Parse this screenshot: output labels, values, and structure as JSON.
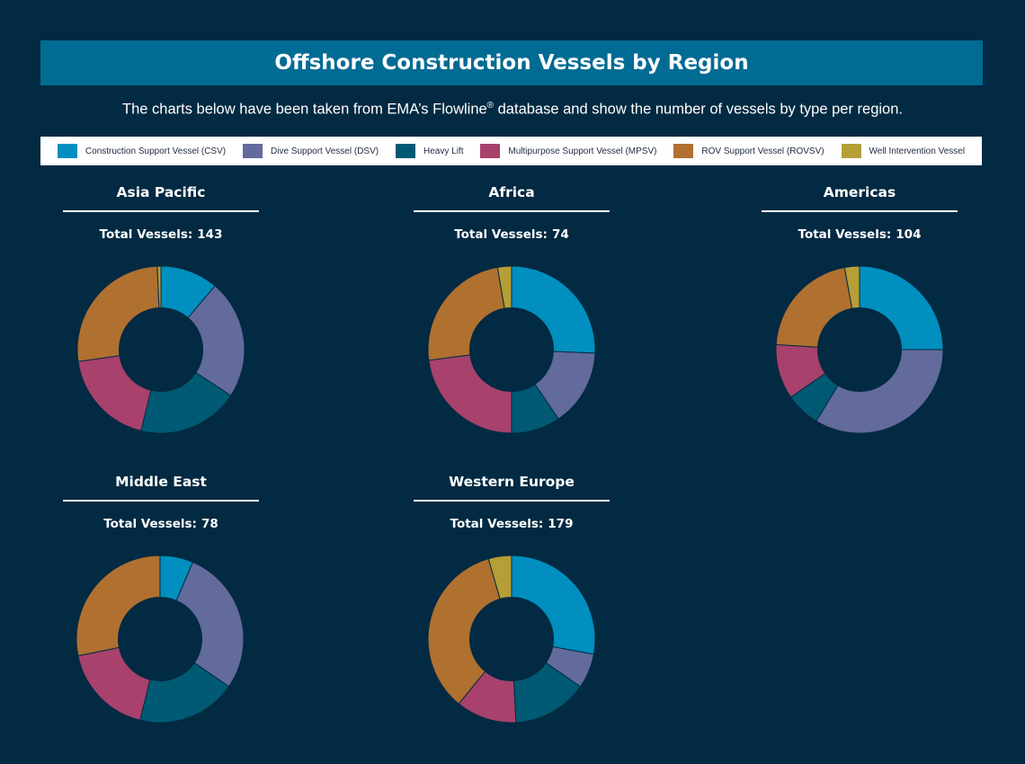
{
  "page": {
    "title": "Offshore Construction Vessels by Region",
    "subtitle_before": "The charts below have been taken from EMA’s Flowline",
    "subtitle_mark": "®",
    "subtitle_after": " database and show the number of vessels by type per region.",
    "total_label": "Total Vessels:"
  },
  "colors": {
    "background": "#022a42",
    "title_bar": "#006b93",
    "slice_border": "#022a42"
  },
  "chart_data": {
    "type": "pie",
    "variant": "donut",
    "legend_placement": "top",
    "categories": [
      {
        "name": "Construction Support Vessel (CSV)",
        "color": "#008fbf"
      },
      {
        "name": "Dive Support Vessel (DSV)",
        "color": "#636a9c"
      },
      {
        "name": "Heavy Lift",
        "color": "#005a73"
      },
      {
        "name": "Multipurpose Support Vessel (MPSV)",
        "color": "#a8416c"
      },
      {
        "name": "ROV Support Vessel (ROVSV)",
        "color": "#b07030"
      },
      {
        "name": "Well Intervention Vessel",
        "color": "#b59f36"
      }
    ],
    "regions": [
      {
        "name": "Asia Pacific",
        "total": 143,
        "values": [
          16,
          33,
          28,
          27,
          38,
          1
        ]
      },
      {
        "name": "Africa",
        "total": 74,
        "values": [
          19,
          11,
          7,
          17,
          18,
          2
        ]
      },
      {
        "name": "Americas",
        "total": 104,
        "values": [
          26,
          35,
          7,
          11,
          22,
          3
        ]
      },
      {
        "name": "Middle East",
        "total": 78,
        "values": [
          5,
          22,
          15,
          14,
          22,
          0
        ]
      },
      {
        "name": "Western Europe",
        "total": 179,
        "values": [
          50,
          12,
          26,
          21,
          62,
          8
        ]
      }
    ]
  }
}
